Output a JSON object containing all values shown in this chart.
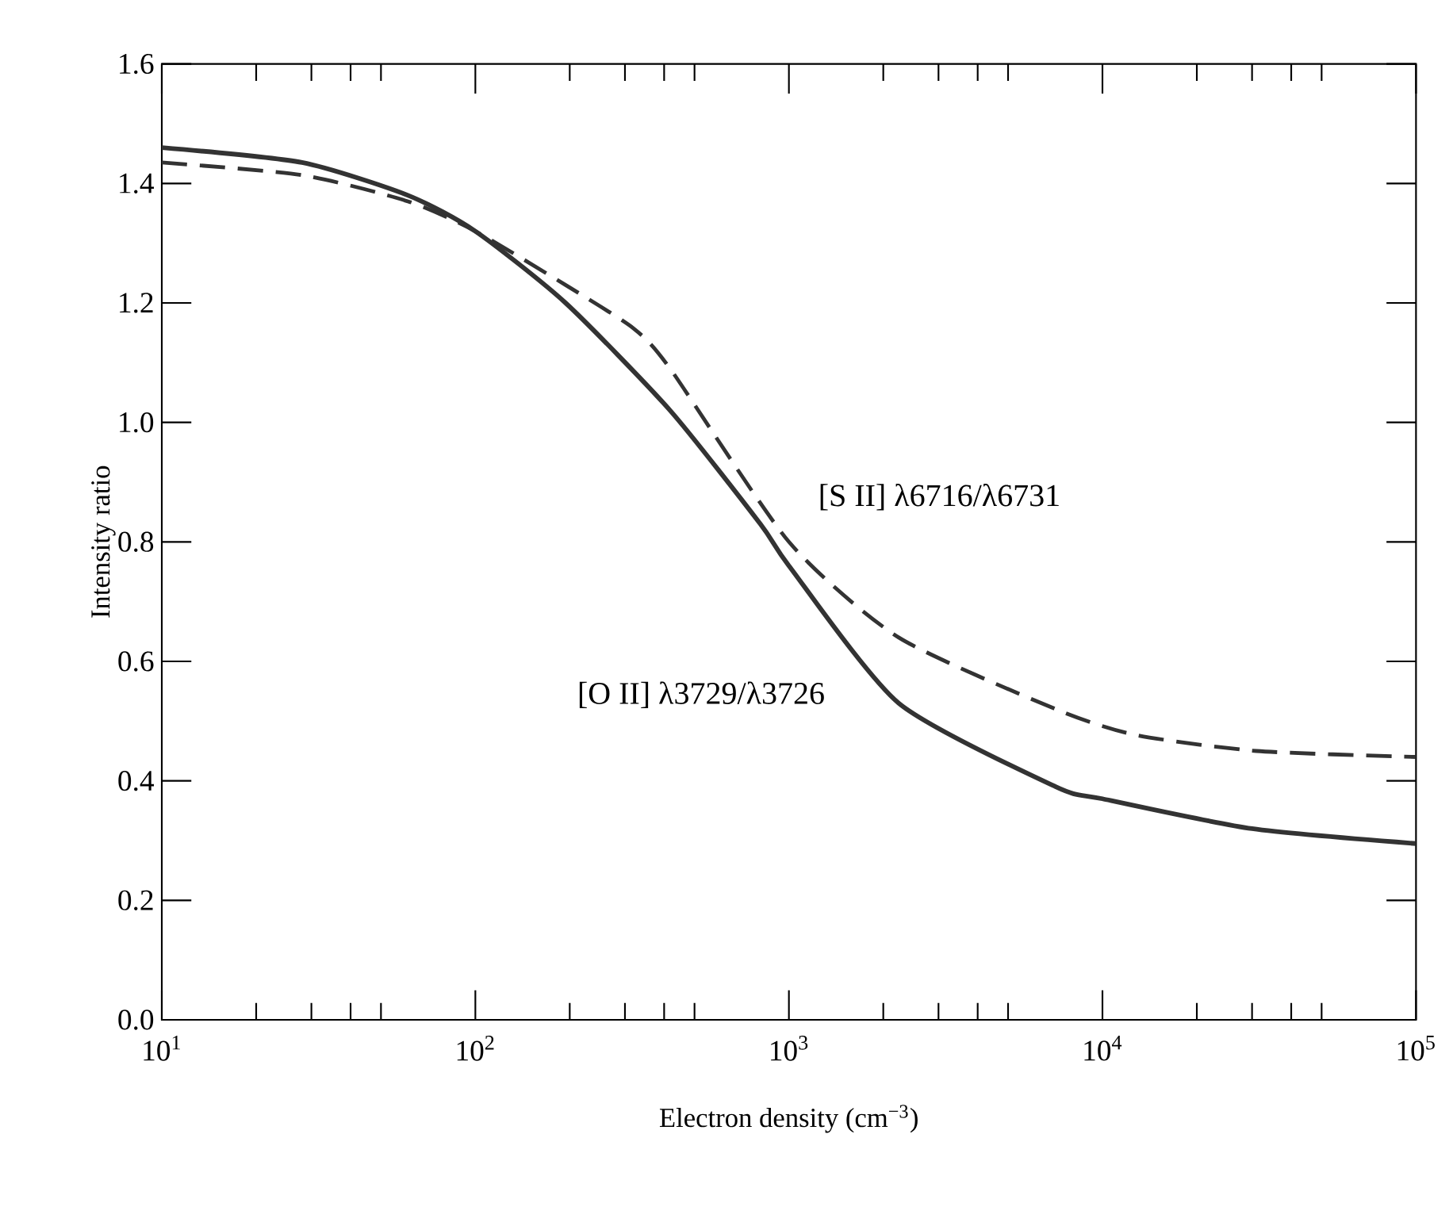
{
  "chart_data": {
    "type": "line",
    "xlabel": "Electron density (cm$^{−3}$)",
    "ylabel": "Intensity ratio",
    "log": "x",
    "xlim": [
      10,
      100000
    ],
    "ylim": [
      0,
      1.6
    ],
    "xticks": [
      {
        "value": 10,
        "label": "10$^{1}$"
      },
      {
        "value": 100,
        "label": "10$^{2}$"
      },
      {
        "value": 1000,
        "label": "10$^{3}$"
      },
      {
        "value": 10000,
        "label": "10$^{4}$"
      },
      {
        "value": 100000,
        "label": "10$^{5}$"
      }
    ],
    "yticks": [
      {
        "value": 0,
        "label": "0.0"
      },
      {
        "value": 0.2,
        "label": "0.2"
      },
      {
        "value": 0.4,
        "label": "0.4"
      },
      {
        "value": 0.6,
        "label": "0.6"
      },
      {
        "value": 0.8,
        "label": "0.8"
      },
      {
        "value": 1.0,
        "label": "1.0"
      },
      {
        "value": 1.2,
        "label": "1.2"
      },
      {
        "value": 1.4,
        "label": "1.4"
      },
      {
        "value": 1.6,
        "label": "1.6"
      }
    ],
    "grid": false,
    "marker": "none",
    "series": [
      {
        "color": "#333333",
        "line_style": "solid",
        "x": [
          10,
          28,
          61,
          100,
          194,
          418,
          811,
          1000,
          2240,
          7100,
          10000,
          30000,
          100000
        ],
        "values": [
          1.46,
          1.435,
          1.38,
          1.32,
          1.2,
          1.02,
          0.83,
          0.76,
          0.53,
          0.39,
          0.37,
          0.32,
          0.295
        ]
      },
      {
        "color": "#333333",
        "line_style": "dashed",
        "x": [
          10,
          28,
          61,
          100,
          194,
          320,
          418,
          1000,
          2240,
          7100,
          12700,
          31000,
          100000
        ],
        "values": [
          1.435,
          1.414,
          1.37,
          1.32,
          1.23,
          1.157,
          1.09,
          0.8,
          0.64,
          0.52,
          0.477,
          0.45,
          0.44
        ]
      }
    ],
    "annotations": [
      "[S II] λ6716/λ6731",
      "[O II] λ3729/λ3726"
    ]
  }
}
